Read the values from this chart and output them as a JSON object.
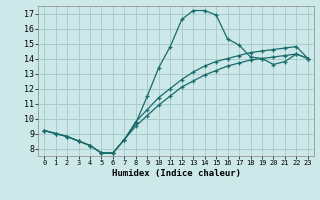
{
  "xlabel": "Humidex (Indice chaleur)",
  "bg_color": "#cce8e8",
  "grid_color": "#aacccc",
  "line_color": "#1a6b6b",
  "xlim": [
    -0.5,
    23.5
  ],
  "ylim": [
    7.5,
    17.5
  ],
  "xticks": [
    0,
    1,
    2,
    3,
    4,
    5,
    6,
    7,
    8,
    9,
    10,
    11,
    12,
    13,
    14,
    15,
    16,
    17,
    18,
    19,
    20,
    21,
    22,
    23
  ],
  "yticks": [
    8,
    9,
    10,
    11,
    12,
    13,
    14,
    15,
    16,
    17
  ],
  "line1_x": [
    0,
    1,
    2,
    3,
    4,
    5,
    6,
    7,
    8,
    9,
    10,
    11,
    12,
    13,
    14,
    15,
    16,
    17,
    18,
    19,
    20,
    21,
    22,
    23
  ],
  "line1_y": [
    9.2,
    9.0,
    8.8,
    8.5,
    8.2,
    7.7,
    7.7,
    8.6,
    9.7,
    11.5,
    13.4,
    14.8,
    16.6,
    17.2,
    17.2,
    16.9,
    15.3,
    14.9,
    14.1,
    14.0,
    13.6,
    13.8,
    14.3,
    14.0
  ],
  "line2_x": [
    0,
    1,
    2,
    3,
    4,
    5,
    6,
    7,
    8,
    9,
    10,
    11,
    12,
    13,
    14,
    15,
    16,
    17,
    18,
    19,
    20,
    21,
    22,
    23
  ],
  "line2_y": [
    9.2,
    9.0,
    8.8,
    8.5,
    8.2,
    7.7,
    7.7,
    8.6,
    9.5,
    10.2,
    10.9,
    11.5,
    12.1,
    12.5,
    12.9,
    13.2,
    13.5,
    13.7,
    13.9,
    14.0,
    14.1,
    14.2,
    14.3,
    14.0
  ],
  "line3_x": [
    0,
    1,
    2,
    3,
    4,
    5,
    6,
    7,
    8,
    9,
    10,
    11,
    12,
    13,
    14,
    15,
    16,
    17,
    18,
    19,
    20,
    21,
    22,
    23
  ],
  "line3_y": [
    9.2,
    9.0,
    8.8,
    8.5,
    8.2,
    7.7,
    7.7,
    8.6,
    9.8,
    10.6,
    11.4,
    12.0,
    12.6,
    13.1,
    13.5,
    13.8,
    14.0,
    14.2,
    14.4,
    14.5,
    14.6,
    14.7,
    14.8,
    14.0
  ]
}
